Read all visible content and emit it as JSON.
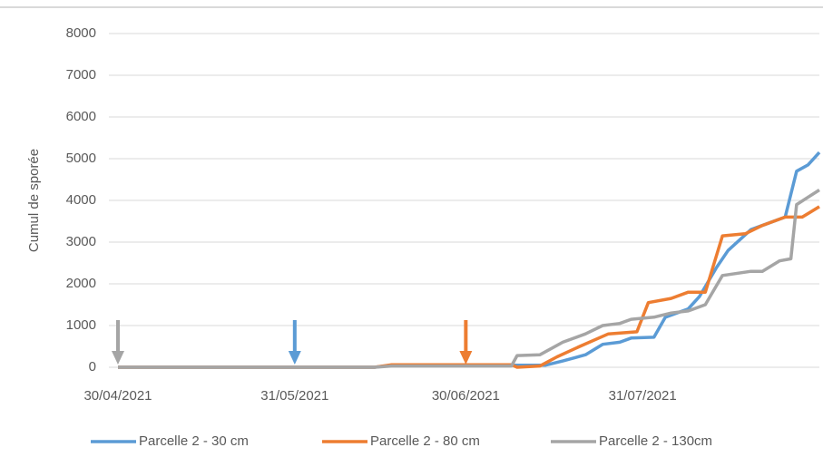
{
  "chart_data": {
    "type": "line",
    "y_label": "Cumul de sporée",
    "xlim": [
      "30/04/2021",
      "31/08/2021"
    ],
    "xticks": [
      "30/04/2021",
      "31/05/2021",
      "30/06/2021",
      "31/07/2021"
    ],
    "ylim": [
      0,
      8000
    ],
    "yticks": [
      0,
      1000,
      2000,
      3000,
      4000,
      5000,
      6000,
      7000,
      8000
    ],
    "grid": true,
    "legend": "bottom",
    "arrows": [
      {
        "x": "30/04/2021",
        "color": "#a5a5a5"
      },
      {
        "x": "31/05/2021",
        "color": "#5b9bd5"
      },
      {
        "x": "30/06/2021",
        "color": "#ed7d31"
      }
    ],
    "series": [
      {
        "name": "Parcelle 2 - 30 cm",
        "color": "#5b9bd5",
        "x": [
          "30/04/2021",
          "14/06/2021",
          "17/06/2021",
          "14/07/2021",
          "17/07/2021",
          "21/07/2021",
          "24/07/2021",
          "27/07/2021",
          "29/07/2021",
          "02/08/2021",
          "04/08/2021",
          "08/08/2021",
          "10/08/2021",
          "13/08/2021",
          "15/08/2021",
          "19/08/2021",
          "22/08/2021",
          "25/08/2021",
          "27/08/2021",
          "29/08/2021",
          "31/08/2021"
        ],
        "values": [
          0,
          0,
          50,
          50,
          150,
          300,
          550,
          600,
          700,
          720,
          1200,
          1400,
          1700,
          2400,
          2800,
          3300,
          3450,
          3600,
          4700,
          4850,
          5150
        ]
      },
      {
        "name": "Parcelle 2 - 80 cm",
        "color": "#ed7d31",
        "x": [
          "30/04/2021",
          "14/06/2021",
          "17/06/2021",
          "08/07/2021",
          "09/07/2021",
          "13/07/2021",
          "16/07/2021",
          "20/07/2021",
          "25/07/2021",
          "30/07/2021",
          "01/08/2021",
          "05/08/2021",
          "08/08/2021",
          "11/08/2021",
          "14/08/2021",
          "18/08/2021",
          "21/08/2021",
          "25/08/2021",
          "28/08/2021",
          "31/08/2021"
        ],
        "values": [
          0,
          0,
          60,
          60,
          0,
          30,
          250,
          500,
          800,
          850,
          1550,
          1650,
          1800,
          1800,
          3150,
          3200,
          3400,
          3600,
          3600,
          3850
        ]
      },
      {
        "name": "Parcelle 2 - 130cm",
        "color": "#a5a5a5",
        "x": [
          "30/04/2021",
          "14/06/2021",
          "17/06/2021",
          "08/07/2021",
          "09/07/2021",
          "13/07/2021",
          "17/07/2021",
          "21/07/2021",
          "24/07/2021",
          "27/07/2021",
          "29/07/2021",
          "02/08/2021",
          "05/08/2021",
          "08/08/2021",
          "11/08/2021",
          "14/08/2021",
          "19/08/2021",
          "21/08/2021",
          "24/08/2021",
          "26/08/2021",
          "27/08/2021",
          "31/08/2021"
        ],
        "values": [
          0,
          0,
          30,
          30,
          280,
          300,
          600,
          800,
          1000,
          1050,
          1150,
          1200,
          1300,
          1350,
          1500,
          2200,
          2300,
          2300,
          2550,
          2600,
          3900,
          4250
        ]
      }
    ]
  }
}
